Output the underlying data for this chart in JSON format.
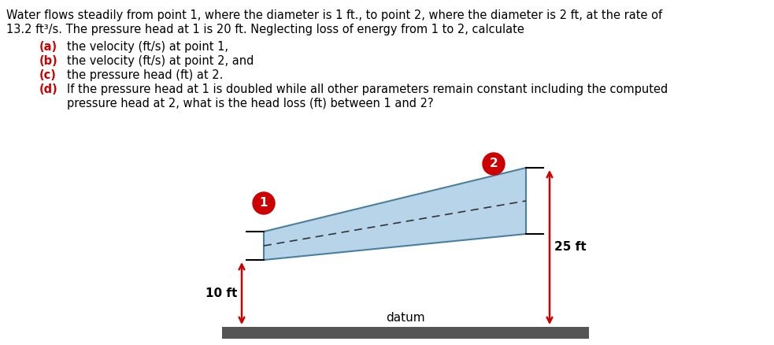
{
  "bg_color": "#ffffff",
  "text_color": "#000000",
  "red_color": "#cc0000",
  "label_color": "#cc0000",
  "pipe_fill": "#b8d4e8",
  "pipe_edge": "#4a7fa0",
  "datum_color": "#555555",
  "arrow_color": "#cc0000",
  "dashed_color": "#333333",
  "title_line1": "Water flows steadily from point 1, where the diameter is 1 ft., to point 2, where the diameter is 2 ft, at the rate of",
  "title_line2": "13.2 ft³/s. The pressure head at 1 is 20 ft. Neglecting loss of energy from 1 to 2, calculate",
  "items": [
    {
      "label": "(a)",
      "text": "the velocity (ft/s) at point 1,"
    },
    {
      "label": "(b)",
      "text": "the velocity (ft/s) at point 2, and"
    },
    {
      "label": "(c)",
      "text": "the pressure head (ft) at 2."
    },
    {
      "label": "(d)",
      "text": "If the pressure head at 1 is doubled while all other parameters remain constant including the computed",
      "text2": "pressure head at 2, what is the head loss (ft) between 1 and 2?"
    }
  ],
  "point1_label": "1",
  "point2_label": "2",
  "height_label_left": "10 ft",
  "height_label_right": "25 ft",
  "datum_label": "datum",
  "figsize": [
    9.83,
    4.38
  ],
  "dpi": 100
}
